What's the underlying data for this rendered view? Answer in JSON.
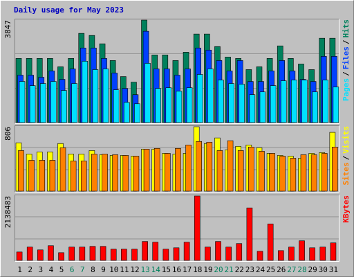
{
  "chart_data": [
    {
      "type": "bar",
      "title": "Daily usage for May 2023",
      "legend_separator": "/",
      "ylim": [
        0,
        3847
      ],
      "yticks": [
        3847
      ],
      "series": [
        {
          "name": "Hits",
          "color": "#00805c",
          "values": [
            2408,
            2408,
            2408,
            2408,
            2094,
            2408,
            3350,
            3271,
            2957,
            2329,
            1727,
            1518,
            3847,
            2539,
            2539,
            2329,
            2643,
            3324,
            3324,
            2853,
            2460,
            2408,
            1989,
            2094,
            2408,
            2879,
            2408,
            2198,
            1989,
            3167,
            3167
          ]
        },
        {
          "name": "Files",
          "color": "#0040ff",
          "values": [
            1780,
            1780,
            1701,
            1937,
            1623,
            2015,
            2800,
            2800,
            2408,
            1858,
            1282,
            1047,
            3428,
            2015,
            2015,
            1780,
            2015,
            2800,
            2722,
            2329,
            1937,
            2329,
            1544,
            1544,
            1937,
            2329,
            1937,
            1623,
            1544,
            2486,
            2486
          ]
        },
        {
          "name": "Pages",
          "color": "#00e0ff",
          "values": [
            1544,
            1387,
            1466,
            1544,
            1204,
            1466,
            2303,
            1989,
            2015,
            1230,
            759,
            707,
            2224,
            1282,
            1309,
            1178,
            1309,
            1806,
            2015,
            1596,
            1466,
            1439,
            1047,
            1151,
            1387,
            1570,
            1596,
            1596,
            1151,
            1596,
            1335
          ]
        }
      ]
    },
    {
      "type": "bar",
      "legend_separator": "/",
      "ylim": [
        0,
        806
      ],
      "yticks": [
        806
      ],
      "series": [
        {
          "name": "Visits",
          "color": "#ffff00",
          "values": [
            605,
            464,
            491,
            491,
            596,
            464,
            464,
            508,
            456,
            447,
            447,
            438,
            526,
            526,
            473,
            464,
            473,
            806,
            596,
            666,
            517,
            561,
            578,
            543,
            473,
            447,
            438,
            412,
            473,
            482,
            736
          ]
        },
        {
          "name": "Sites",
          "color": "#ff8000",
          "values": [
            508,
            386,
            386,
            386,
            543,
            377,
            377,
            464,
            464,
            456,
            447,
            438,
            526,
            535,
            473,
            535,
            578,
            622,
            613,
            508,
            631,
            508,
            552,
            499,
            473,
            438,
            412,
            456,
            456,
            473,
            552
          ]
        }
      ]
    },
    {
      "type": "bar",
      "ylim": [
        0,
        2138483
      ],
      "yticks": [
        2138483
      ],
      "categories": [
        "1",
        "2",
        "3",
        "4",
        "5",
        "6",
        "7",
        "8",
        "9",
        "10",
        "11",
        "12",
        "13",
        "14",
        "15",
        "16",
        "17",
        "18",
        "19",
        "20",
        "21",
        "22",
        "23",
        "24",
        "25",
        "26",
        "27",
        "28",
        "29",
        "30",
        "31"
      ],
      "category_colors": [
        "#000000",
        "#000000",
        "#000000",
        "#000000",
        "#000000",
        "#00805c",
        "#00805c",
        "#000000",
        "#000000",
        "#000000",
        "#000000",
        "#000000",
        "#00805c",
        "#00805c",
        "#000000",
        "#000000",
        "#000000",
        "#000000",
        "#000000",
        "#00805c",
        "#00805c",
        "#000000",
        "#000000",
        "#000000",
        "#000000",
        "#000000",
        "#00805c",
        "#00805c",
        "#000000",
        "#000000",
        "#000000"
      ],
      "series": [
        {
          "name": "KBytes",
          "color": "#ff0000",
          "values": [
            279000,
            442000,
            349000,
            488000,
            256000,
            442000,
            442000,
            465000,
            465000,
            372000,
            372000,
            372000,
            628000,
            604000,
            372000,
            418000,
            604000,
            2138483,
            442000,
            628000,
            442000,
            558000,
            1743000,
            302000,
            1209000,
            325000,
            442000,
            651000,
            418000,
            442000,
            581000
          ]
        }
      ]
    }
  ]
}
